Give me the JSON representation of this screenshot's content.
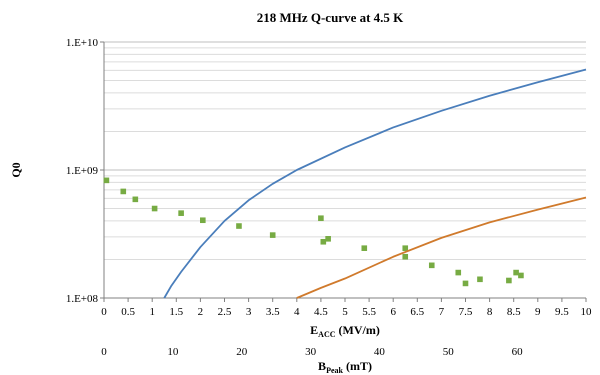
{
  "chart_data": {
    "type": "scatter",
    "title": "218 MHz Q-curve at 4.5 K",
    "ylabel": "Q0",
    "xlabel_main": "E",
    "xlabel_sub": "ACC",
    "xlabel_unit": " (MV/m)",
    "x2label_main": "B",
    "x2label_sub": "Peak",
    "x2label_unit": " (mT)",
    "y_scale": "log",
    "ylim": [
      100000000,
      10000000000
    ],
    "xlim": [
      0,
      10
    ],
    "y_ticks": [
      {
        "value": 100000000,
        "label": "1.E+08"
      },
      {
        "value": 1000000000,
        "label": "1.E+09"
      },
      {
        "value": 10000000000,
        "label": "1.E+10"
      }
    ],
    "x_ticks": [
      "0",
      "0.5",
      "1",
      "1.5",
      "2",
      "2.5",
      "3",
      "3.5",
      "4",
      "4.5",
      "5",
      "5.5",
      "6",
      "6.5",
      "7",
      "7.5",
      "8",
      "8.5",
      "9",
      "9.5",
      "10"
    ],
    "x2_ticks": [
      "0",
      "10",
      "20",
      "30",
      "40",
      "50",
      "60"
    ],
    "x2_scale_mT_per_MVm": 7.0,
    "gridlines": "horizontal",
    "legend": "none",
    "series": [
      {
        "kind": "markers",
        "color": "#77ab43",
        "points": [
          {
            "x": 0.05,
            "y": 830000000
          },
          {
            "x": 0.4,
            "y": 680000000
          },
          {
            "x": 0.65,
            "y": 590000000
          },
          {
            "x": 1.05,
            "y": 500000000
          },
          {
            "x": 1.6,
            "y": 460000000
          },
          {
            "x": 2.05,
            "y": 405000000
          },
          {
            "x": 2.8,
            "y": 365000000
          },
          {
            "x": 3.5,
            "y": 310000000
          },
          {
            "x": 4.5,
            "y": 420000000
          },
          {
            "x": 4.55,
            "y": 275000000
          },
          {
            "x": 4.65,
            "y": 290000000
          },
          {
            "x": 5.4,
            "y": 245000000
          },
          {
            "x": 6.25,
            "y": 245000000
          },
          {
            "x": 6.25,
            "y": 210000000
          },
          {
            "x": 6.8,
            "y": 180000000
          },
          {
            "x": 7.35,
            "y": 158000000
          },
          {
            "x": 7.5,
            "y": 130000000
          },
          {
            "x": 7.8,
            "y": 140000000
          },
          {
            "x": 8.4,
            "y": 137000000
          },
          {
            "x": 8.55,
            "y": 158000000
          },
          {
            "x": 8.65,
            "y": 150000000
          }
        ]
      },
      {
        "kind": "line",
        "color": "#4a7ebb",
        "points": [
          {
            "x": 1.25,
            "y": 100000000
          },
          {
            "x": 1.4,
            "y": 125000000
          },
          {
            "x": 1.6,
            "y": 160000000
          },
          {
            "x": 2.0,
            "y": 250000000
          },
          {
            "x": 2.5,
            "y": 400000000
          },
          {
            "x": 3.0,
            "y": 580000000
          },
          {
            "x": 3.5,
            "y": 780000000
          },
          {
            "x": 4.0,
            "y": 1000000000
          },
          {
            "x": 5.0,
            "y": 1500000000
          },
          {
            "x": 6.0,
            "y": 2150000000
          },
          {
            "x": 7.0,
            "y": 2900000000
          },
          {
            "x": 8.0,
            "y": 3800000000
          },
          {
            "x": 9.0,
            "y": 4850000000
          },
          {
            "x": 10.0,
            "y": 6100000000
          }
        ]
      },
      {
        "kind": "line",
        "color": "#d07a2c",
        "points": [
          {
            "x": 4.0,
            "y": 100000000
          },
          {
            "x": 4.5,
            "y": 120000000
          },
          {
            "x": 5.0,
            "y": 142000000
          },
          {
            "x": 6.0,
            "y": 210000000
          },
          {
            "x": 7.0,
            "y": 295000000
          },
          {
            "x": 8.0,
            "y": 390000000
          },
          {
            "x": 9.0,
            "y": 490000000
          },
          {
            "x": 10.0,
            "y": 610000000
          }
        ]
      }
    ]
  }
}
